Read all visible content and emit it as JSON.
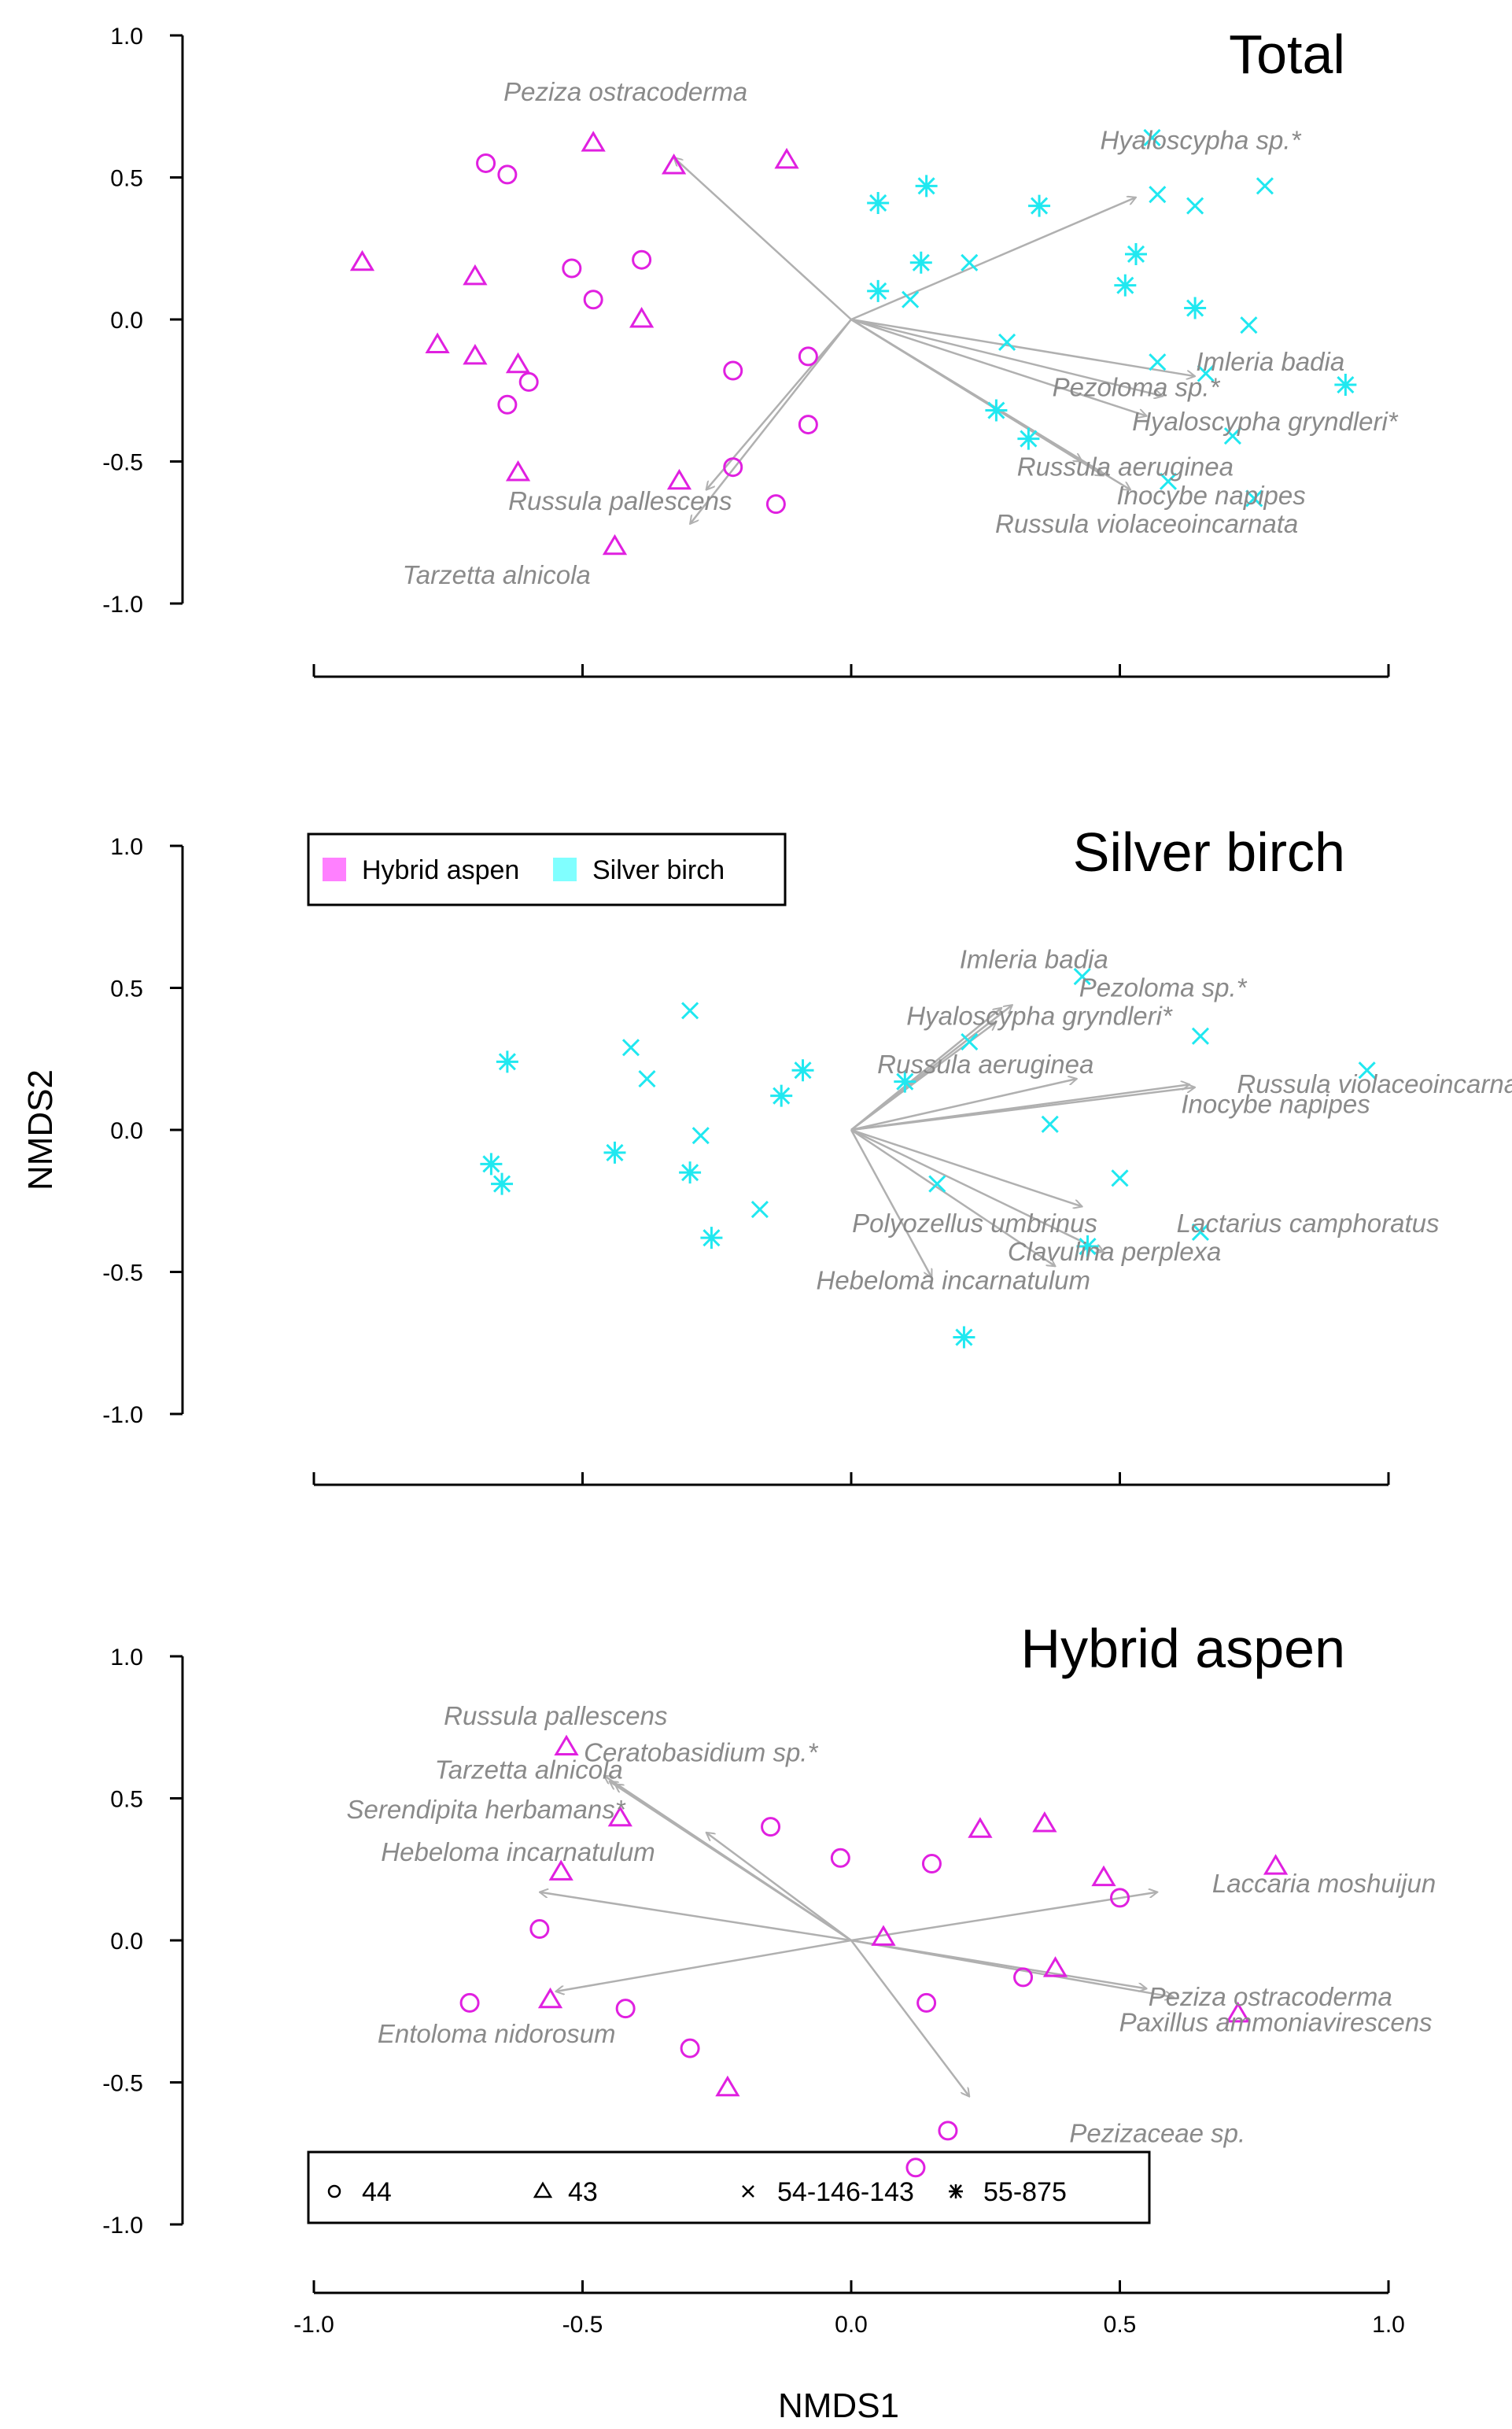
{
  "figure": {
    "xlabel": "NMDS1",
    "ylabel": "NMDS2"
  },
  "legend_groups": {
    "items": [
      {
        "label": "Hybrid aspen",
        "color": "#ff80ff"
      },
      {
        "label": "Silver birch",
        "color": "#80ffff"
      }
    ]
  },
  "legend_sites": {
    "items": [
      {
        "label": "44",
        "marker": "circle"
      },
      {
        "label": "43",
        "marker": "triangle"
      },
      {
        "label": "54-146-143",
        "marker": "cross"
      },
      {
        "label": "55-875",
        "marker": "asterisk"
      }
    ]
  },
  "colors": {
    "aspen": "#e020e0",
    "birch": "#20e8f0",
    "arrow": "#b0b0b0",
    "label": "#8a8a8a"
  },
  "chart_data": [
    {
      "type": "scatter",
      "title": "Total",
      "xlim": [
        -1.0,
        1.0
      ],
      "ylim": [
        -1.0,
        1.0
      ],
      "x_ticks": [
        "-1.0",
        "-0.5",
        "0.0",
        "0.5",
        "1.0"
      ],
      "y_ticks": [
        "1.0",
        "0.5",
        "0.0",
        "-0.5",
        "-1.0"
      ],
      "points": [
        {
          "x": -0.68,
          "y": 0.55,
          "group": "aspen",
          "site": "44"
        },
        {
          "x": -0.64,
          "y": 0.51,
          "group": "aspen",
          "site": "44"
        },
        {
          "x": -0.52,
          "y": 0.18,
          "group": "aspen",
          "site": "44"
        },
        {
          "x": -0.39,
          "y": 0.21,
          "group": "aspen",
          "site": "44"
        },
        {
          "x": -0.48,
          "y": 0.07,
          "group": "aspen",
          "site": "44"
        },
        {
          "x": -0.6,
          "y": -0.22,
          "group": "aspen",
          "site": "44"
        },
        {
          "x": -0.64,
          "y": -0.3,
          "group": "aspen",
          "site": "44"
        },
        {
          "x": -0.22,
          "y": -0.18,
          "group": "aspen",
          "site": "44"
        },
        {
          "x": -0.08,
          "y": -0.13,
          "group": "aspen",
          "site": "44"
        },
        {
          "x": -0.08,
          "y": -0.37,
          "group": "aspen",
          "site": "44"
        },
        {
          "x": -0.22,
          "y": -0.52,
          "group": "aspen",
          "site": "44"
        },
        {
          "x": -0.14,
          "y": -0.65,
          "group": "aspen",
          "site": "44"
        },
        {
          "x": -0.48,
          "y": 0.62,
          "group": "aspen",
          "site": "43"
        },
        {
          "x": -0.33,
          "y": 0.54,
          "group": "aspen",
          "site": "43"
        },
        {
          "x": -0.12,
          "y": 0.56,
          "group": "aspen",
          "site": "43"
        },
        {
          "x": -0.91,
          "y": 0.2,
          "group": "aspen",
          "site": "43"
        },
        {
          "x": -0.7,
          "y": 0.15,
          "group": "aspen",
          "site": "43"
        },
        {
          "x": -0.77,
          "y": -0.09,
          "group": "aspen",
          "site": "43"
        },
        {
          "x": -0.7,
          "y": -0.13,
          "group": "aspen",
          "site": "43"
        },
        {
          "x": -0.62,
          "y": -0.16,
          "group": "aspen",
          "site": "43"
        },
        {
          "x": -0.39,
          "y": 0.0,
          "group": "aspen",
          "site": "43"
        },
        {
          "x": -0.62,
          "y": -0.54,
          "group": "aspen",
          "site": "43"
        },
        {
          "x": -0.32,
          "y": -0.57,
          "group": "aspen",
          "site": "43"
        },
        {
          "x": -0.44,
          "y": -0.8,
          "group": "aspen",
          "site": "43"
        },
        {
          "x": 0.56,
          "y": 0.64,
          "group": "birch",
          "site": "54-146-143"
        },
        {
          "x": 0.57,
          "y": 0.44,
          "group": "birch",
          "site": "54-146-143"
        },
        {
          "x": 0.64,
          "y": 0.4,
          "group": "birch",
          "site": "54-146-143"
        },
        {
          "x": 0.77,
          "y": 0.47,
          "group": "birch",
          "site": "54-146-143"
        },
        {
          "x": 0.22,
          "y": 0.2,
          "group": "birch",
          "site": "54-146-143"
        },
        {
          "x": 0.11,
          "y": 0.07,
          "group": "birch",
          "site": "54-146-143"
        },
        {
          "x": 0.29,
          "y": -0.08,
          "group": "birch",
          "site": "54-146-143"
        },
        {
          "x": 0.57,
          "y": -0.15,
          "group": "birch",
          "site": "54-146-143"
        },
        {
          "x": 0.66,
          "y": -0.19,
          "group": "birch",
          "site": "54-146-143"
        },
        {
          "x": 0.74,
          "y": -0.02,
          "group": "birch",
          "site": "54-146-143"
        },
        {
          "x": 0.71,
          "y": -0.41,
          "group": "birch",
          "site": "54-146-143"
        },
        {
          "x": 0.59,
          "y": -0.57,
          "group": "birch",
          "site": "54-146-143"
        },
        {
          "x": 0.75,
          "y": -0.63,
          "group": "birch",
          "site": "54-146-143"
        },
        {
          "x": 0.05,
          "y": 0.41,
          "group": "birch",
          "site": "55-875"
        },
        {
          "x": 0.14,
          "y": 0.47,
          "group": "birch",
          "site": "55-875"
        },
        {
          "x": 0.35,
          "y": 0.4,
          "group": "birch",
          "site": "55-875"
        },
        {
          "x": 0.13,
          "y": 0.2,
          "group": "birch",
          "site": "55-875"
        },
        {
          "x": 0.05,
          "y": 0.1,
          "group": "birch",
          "site": "55-875"
        },
        {
          "x": 0.53,
          "y": 0.23,
          "group": "birch",
          "site": "55-875"
        },
        {
          "x": 0.51,
          "y": 0.12,
          "group": "birch",
          "site": "55-875"
        },
        {
          "x": 0.64,
          "y": 0.04,
          "group": "birch",
          "site": "55-875"
        },
        {
          "x": 0.92,
          "y": -0.23,
          "group": "birch",
          "site": "55-875"
        },
        {
          "x": 0.27,
          "y": -0.32,
          "group": "birch",
          "site": "55-875"
        },
        {
          "x": 0.33,
          "y": -0.42,
          "group": "birch",
          "site": "55-875"
        }
      ],
      "vectors": [
        {
          "label": "Peziza ostracoderma",
          "x": -0.33,
          "y": 0.57,
          "label_x": -0.42,
          "label_y": 0.8
        },
        {
          "label": "Hyaloscypha sp.*",
          "x": 0.53,
          "y": 0.43,
          "label_x": 0.65,
          "label_y": 0.63
        },
        {
          "label": "Imleria badia",
          "x": 0.64,
          "y": -0.2,
          "label_x": 0.78,
          "label_y": -0.15
        },
        {
          "label": "Pezoloma sp.*",
          "x": 0.58,
          "y": -0.27,
          "label_x": 0.53,
          "label_y": -0.24
        },
        {
          "label": "Hyaloscypha gryndleri*",
          "x": 0.55,
          "y": -0.34,
          "label_x": 0.77,
          "label_y": -0.36
        },
        {
          "label": "Russula aeruginea",
          "x": 0.43,
          "y": -0.5,
          "label_x": 0.51,
          "label_y": -0.52
        },
        {
          "label": "Inocybe napipes",
          "x": 0.47,
          "y": -0.55,
          "label_x": 0.67,
          "label_y": -0.62
        },
        {
          "label": "Russula violaceoincarnata",
          "x": 0.52,
          "y": -0.6,
          "label_x": 0.55,
          "label_y": -0.72
        },
        {
          "label": "Russula pallescens",
          "x": -0.27,
          "y": -0.6,
          "label_x": -0.43,
          "label_y": -0.64
        },
        {
          "label": "Tarzetta alnicola",
          "x": -0.3,
          "y": -0.72,
          "label_x": -0.66,
          "label_y": -0.9
        }
      ]
    },
    {
      "type": "scatter",
      "title": "Silver birch",
      "xlim": [
        -1.0,
        1.0
      ],
      "ylim": [
        -1.0,
        1.0
      ],
      "x_ticks": [
        "-1.0",
        "-0.5",
        "0.0",
        "0.5",
        "1.0"
      ],
      "y_ticks": [
        "1.0",
        "0.5",
        "0.0",
        "-0.5",
        "-1.0"
      ],
      "points": [
        {
          "x": -0.3,
          "y": 0.42,
          "group": "birch",
          "site": "54-146-143"
        },
        {
          "x": -0.41,
          "y": 0.29,
          "group": "birch",
          "site": "54-146-143"
        },
        {
          "x": -0.38,
          "y": 0.18,
          "group": "birch",
          "site": "54-146-143"
        },
        {
          "x": -0.28,
          "y": -0.02,
          "group": "birch",
          "site": "54-146-143"
        },
        {
          "x": -0.17,
          "y": -0.28,
          "group": "birch",
          "site": "54-146-143"
        },
        {
          "x": 0.22,
          "y": 0.31,
          "group": "birch",
          "site": "54-146-143"
        },
        {
          "x": 0.65,
          "y": 0.33,
          "group": "birch",
          "site": "54-146-143"
        },
        {
          "x": 0.37,
          "y": 0.02,
          "group": "birch",
          "site": "54-146-143"
        },
        {
          "x": 0.5,
          "y": -0.17,
          "group": "birch",
          "site": "54-146-143"
        },
        {
          "x": 0.16,
          "y": -0.19,
          "group": "birch",
          "site": "54-146-143"
        },
        {
          "x": 0.43,
          "y": 0.54,
          "group": "birch",
          "site": "54-146-143"
        },
        {
          "x": 0.96,
          "y": 0.21,
          "group": "birch",
          "site": "54-146-143"
        },
        {
          "x": 0.65,
          "y": -0.36,
          "group": "birch",
          "site": "54-146-143"
        },
        {
          "x": -0.64,
          "y": 0.24,
          "group": "birch",
          "site": "55-875"
        },
        {
          "x": -0.67,
          "y": -0.12,
          "group": "birch",
          "site": "55-875"
        },
        {
          "x": -0.65,
          "y": -0.19,
          "group": "birch",
          "site": "55-875"
        },
        {
          "x": -0.44,
          "y": -0.08,
          "group": "birch",
          "site": "55-875"
        },
        {
          "x": -0.3,
          "y": -0.15,
          "group": "birch",
          "site": "55-875"
        },
        {
          "x": -0.26,
          "y": -0.38,
          "group": "birch",
          "site": "55-875"
        },
        {
          "x": -0.13,
          "y": 0.12,
          "group": "birch",
          "site": "55-875"
        },
        {
          "x": -0.09,
          "y": 0.21,
          "group": "birch",
          "site": "55-875"
        },
        {
          "x": 0.1,
          "y": 0.17,
          "group": "birch",
          "site": "55-875"
        },
        {
          "x": 0.44,
          "y": -0.41,
          "group": "birch",
          "site": "55-875"
        },
        {
          "x": 0.21,
          "y": -0.73,
          "group": "birch",
          "site": "55-875"
        }
      ],
      "vectors": [
        {
          "label": "Imleria badia",
          "x": 0.28,
          "y": 0.43,
          "label_x": 0.34,
          "label_y": 0.6
        },
        {
          "label": "Pezoloma sp.*",
          "x": 0.3,
          "y": 0.44,
          "label_x": 0.58,
          "label_y": 0.5
        },
        {
          "label": "Hyaloscypha gryndleri*",
          "x": 0.27,
          "y": 0.38,
          "label_x": 0.35,
          "label_y": 0.4
        },
        {
          "label": "Russula aeruginea",
          "x": 0.42,
          "y": 0.18,
          "label_x": 0.25,
          "label_y": 0.23
        },
        {
          "label": "Russula violaceoincarnata",
          "x": 0.63,
          "y": 0.16,
          "label_x": 1.0,
          "label_y": 0.16
        },
        {
          "label": "Inocybe napipes",
          "x": 0.64,
          "y": 0.15,
          "label_x": 0.79,
          "label_y": 0.09
        },
        {
          "label": "Polyozellus umbrinus",
          "x": 0.43,
          "y": -0.27,
          "label_x": 0.23,
          "label_y": -0.33
        },
        {
          "label": "Lactarius camphoratus",
          "x": 0.47,
          "y": -0.43,
          "label_x": 0.85,
          "label_y": -0.33
        },
        {
          "label": "Clavulina perplexa",
          "x": 0.38,
          "y": -0.48,
          "label_x": 0.49,
          "label_y": -0.43
        },
        {
          "label": "Hebeloma incarnatulum",
          "x": 0.15,
          "y": -0.52,
          "label_x": 0.19,
          "label_y": -0.53
        }
      ]
    },
    {
      "type": "scatter",
      "title": "Hybrid aspen",
      "xlim": [
        -1.0,
        1.0
      ],
      "ylim": [
        -1.0,
        1.0
      ],
      "x_ticks": [
        "-1.0",
        "-0.5",
        "0.0",
        "0.5",
        "1.0"
      ],
      "y_ticks": [
        "1.0",
        "0.5",
        "0.0",
        "-0.5",
        "-1.0"
      ],
      "points": [
        {
          "x": -0.15,
          "y": 0.4,
          "group": "aspen",
          "site": "44"
        },
        {
          "x": -0.02,
          "y": 0.29,
          "group": "aspen",
          "site": "44"
        },
        {
          "x": 0.15,
          "y": 0.27,
          "group": "aspen",
          "site": "44"
        },
        {
          "x": 0.5,
          "y": 0.15,
          "group": "aspen",
          "site": "44"
        },
        {
          "x": -0.58,
          "y": 0.04,
          "group": "aspen",
          "site": "44"
        },
        {
          "x": -0.71,
          "y": -0.22,
          "group": "aspen",
          "site": "44"
        },
        {
          "x": -0.42,
          "y": -0.24,
          "group": "aspen",
          "site": "44"
        },
        {
          "x": -0.3,
          "y": -0.38,
          "group": "aspen",
          "site": "44"
        },
        {
          "x": 0.14,
          "y": -0.22,
          "group": "aspen",
          "site": "44"
        },
        {
          "x": 0.32,
          "y": -0.13,
          "group": "aspen",
          "site": "44"
        },
        {
          "x": 0.18,
          "y": -0.67,
          "group": "aspen",
          "site": "44"
        },
        {
          "x": 0.12,
          "y": -0.8,
          "group": "aspen",
          "site": "44"
        },
        {
          "x": -0.53,
          "y": 0.68,
          "group": "aspen",
          "site": "43"
        },
        {
          "x": -0.43,
          "y": 0.43,
          "group": "aspen",
          "site": "43"
        },
        {
          "x": -0.54,
          "y": 0.24,
          "group": "aspen",
          "site": "43"
        },
        {
          "x": 0.24,
          "y": 0.39,
          "group": "aspen",
          "site": "43"
        },
        {
          "x": 0.36,
          "y": 0.41,
          "group": "aspen",
          "site": "43"
        },
        {
          "x": 0.47,
          "y": 0.22,
          "group": "aspen",
          "site": "43"
        },
        {
          "x": 0.79,
          "y": 0.26,
          "group": "aspen",
          "site": "43"
        },
        {
          "x": 0.06,
          "y": 0.01,
          "group": "aspen",
          "site": "43"
        },
        {
          "x": 0.38,
          "y": -0.1,
          "group": "aspen",
          "site": "43"
        },
        {
          "x": 0.72,
          "y": -0.26,
          "group": "aspen",
          "site": "43"
        },
        {
          "x": -0.56,
          "y": -0.21,
          "group": "aspen",
          "site": "43"
        },
        {
          "x": -0.23,
          "y": -0.52,
          "group": "aspen",
          "site": "43"
        }
      ],
      "vectors": [
        {
          "label": "Russula pallescens",
          "x": -0.44,
          "y": 0.55,
          "label_x": -0.55,
          "label_y": 0.79
        },
        {
          "label": "Ceratobasidium sp.*",
          "x": -0.46,
          "y": 0.58,
          "label_x": -0.28,
          "label_y": 0.66
        },
        {
          "label": "Tarzetta alnicola",
          "x": -0.45,
          "y": 0.56,
          "label_x": -0.6,
          "label_y": 0.6
        },
        {
          "label": "Serendipita herbamans*",
          "x": -0.27,
          "y": 0.38,
          "label_x": -0.68,
          "label_y": 0.46
        },
        {
          "label": "Hebeloma incarnatulum",
          "x": -0.58,
          "y": 0.17,
          "label_x": -0.62,
          "label_y": 0.31
        },
        {
          "label": "Entoloma nidorosum",
          "x": -0.55,
          "y": -0.18,
          "label_x": -0.66,
          "label_y": -0.33
        },
        {
          "label": "Laccaria moshuijun",
          "x": 0.57,
          "y": 0.17,
          "label_x": 0.88,
          "label_y": 0.2
        },
        {
          "label": "Peziza ostracoderma",
          "x": 0.55,
          "y": -0.17,
          "label_x": 0.78,
          "label_y": -0.2
        },
        {
          "label": "Paxillus ammoniavirescens",
          "x": 0.6,
          "y": -0.2,
          "label_x": 0.79,
          "label_y": -0.29
        },
        {
          "label": "Pezizaceae sp.",
          "x": 0.22,
          "y": -0.55,
          "label_x": 0.57,
          "label_y": -0.68
        }
      ]
    }
  ]
}
